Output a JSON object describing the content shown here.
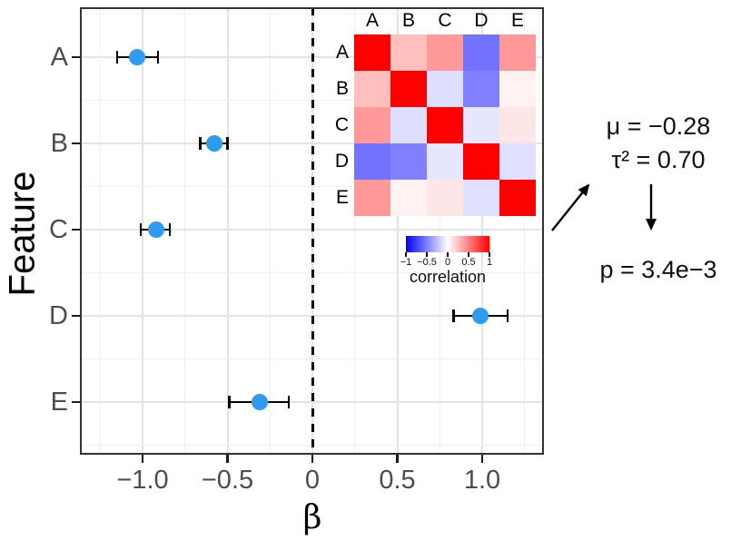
{
  "chart_data": {
    "type": "scatter",
    "subtype": "forest-plot-with-error-bars-and-correlation-heatmap-inset",
    "title": "",
    "xlabel": "β",
    "ylabel": "Feature",
    "xlim": [
      -1.37,
      1.37
    ],
    "x_ticks": [
      -1.0,
      -0.5,
      0,
      0.5,
      1.0
    ],
    "x_tick_labels": [
      "−1.0",
      "−0.5",
      "0",
      "0.5",
      "1.0"
    ],
    "categories": [
      "A",
      "B",
      "C",
      "D",
      "E"
    ],
    "zero_reference_line": 0,
    "point_color": "#2D9BF0",
    "grid": true,
    "series": [
      {
        "name": "beta_estimates",
        "points": [
          {
            "feature": "A",
            "beta": -1.03,
            "ci_low": -1.15,
            "ci_high": -0.91
          },
          {
            "feature": "B",
            "beta": -0.58,
            "ci_low": -0.66,
            "ci_high": -0.5
          },
          {
            "feature": "C",
            "beta": -0.92,
            "ci_low": -1.01,
            "ci_high": -0.84
          },
          {
            "feature": "D",
            "beta": 0.99,
            "ci_low": 0.83,
            "ci_high": 1.15
          },
          {
            "feature": "E",
            "beta": -0.31,
            "ci_low": -0.49,
            "ci_high": -0.14
          }
        ]
      }
    ],
    "inset_heatmap": {
      "labels": [
        "A",
        "B",
        "C",
        "D",
        "E"
      ],
      "matrix": [
        [
          1,
          0.25,
          0.4,
          -0.55,
          0.4
        ],
        [
          0.25,
          1,
          -0.13,
          -0.5,
          0.05
        ],
        [
          0.4,
          -0.13,
          1,
          -0.1,
          0.1
        ],
        [
          -0.55,
          -0.5,
          -0.1,
          1,
          -0.12
        ],
        [
          0.4,
          0.05,
          0.1,
          -0.12,
          1
        ]
      ],
      "colorscale": {
        "low": "#0000FF",
        "mid": "#FFFFFF",
        "high": "#FF0000",
        "domain": [
          -1,
          1
        ]
      },
      "legend": {
        "title": "correlation",
        "tick_labels": [
          "−1",
          "−0.5",
          "0",
          "0.5",
          "1"
        ],
        "tick_values": [
          -1,
          -0.5,
          0,
          0.5,
          1
        ]
      }
    },
    "annotations": {
      "mu": "μ = −0.28",
      "tau_sq": "τ² = 0.70",
      "p": "p = 3.4e−3"
    }
  },
  "colors": {
    "point": "#2D9BF0",
    "axis_text": "#4D4D4D",
    "axis_title": "#000000",
    "panel_border": "#333333",
    "grid_major": "#E4E4E4",
    "grid_minor": "#F0F0F0",
    "dashed_line": "#000000",
    "arrow": "#000000"
  }
}
